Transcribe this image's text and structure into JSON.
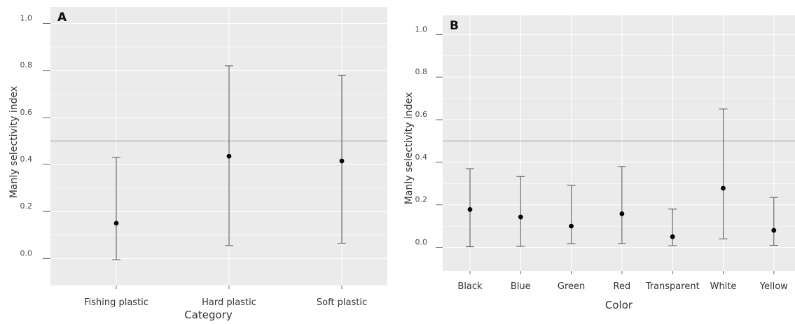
{
  "chart_data": [
    {
      "type": "scatter",
      "panel_label": "A",
      "xlabel": "Category",
      "ylabel": "Manly selectivity index",
      "categories": [
        "Fishing plastic",
        "Hard plastic",
        "Soft plastic"
      ],
      "values": [
        0.15,
        0.435,
        0.415
      ],
      "lower": [
        -0.005,
        0.055,
        0.065
      ],
      "upper": [
        0.43,
        0.82,
        0.78
      ],
      "yticks": [
        "0.0",
        "0.2",
        "0.4",
        "0.6",
        "0.8",
        "1.0"
      ],
      "ylim": [
        -0.115,
        1.07
      ],
      "reference_line": 0.5,
      "grid": true
    },
    {
      "type": "scatter",
      "panel_label": "B",
      "xlabel": "Color",
      "ylabel": "Manly selectivity index",
      "categories": [
        "Black",
        "Blue",
        "Green",
        "Red",
        "Transparent",
        "White",
        "Yellow"
      ],
      "values": [
        0.178,
        0.143,
        0.1,
        0.158,
        0.05,
        0.278,
        0.08
      ],
      "lower": [
        0.003,
        0.005,
        0.017,
        0.018,
        0.008,
        0.04,
        0.01
      ],
      "upper": [
        0.37,
        0.333,
        0.292,
        0.38,
        0.18,
        0.65,
        0.235
      ],
      "yticks": [
        "0.0",
        "0.2",
        "0.4",
        "0.6",
        "0.8",
        "1.0"
      ],
      "ylim": [
        -0.11,
        1.09
      ],
      "reference_line": 0.5,
      "grid": true
    }
  ]
}
